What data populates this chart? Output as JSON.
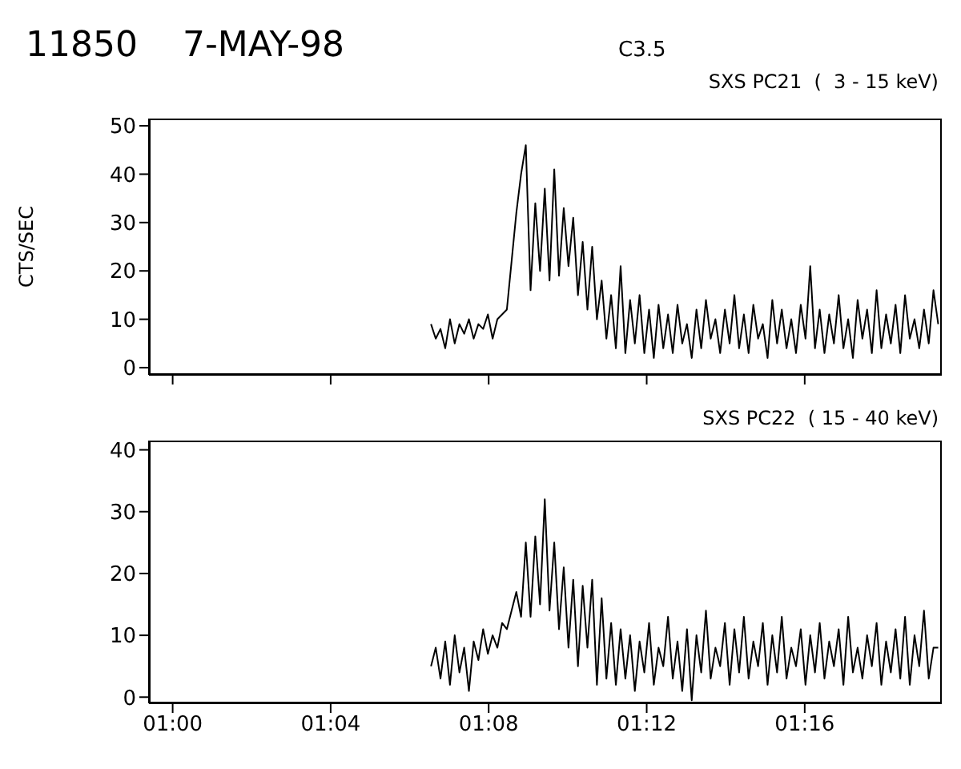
{
  "chart_data": [
    {
      "type": "line",
      "title": "11850",
      "subtitle": "7-MAY-98",
      "annotations": [
        "C3.5",
        "SXS PC21  (  3 - 15 keV)"
      ],
      "ylabel": "CTS/SEC",
      "x": [
        1.109,
        1.111,
        1.113,
        1.115,
        1.117,
        1.119,
        1.121,
        1.123,
        1.125,
        1.127,
        1.129,
        1.131,
        1.133,
        1.135,
        1.137,
        1.139,
        1.141,
        1.143,
        1.145,
        1.147,
        1.149,
        1.151,
        1.153,
        1.155,
        1.157,
        1.159,
        1.161,
        1.163,
        1.165,
        1.167,
        1.169,
        1.171,
        1.173,
        1.175,
        1.177,
        1.179,
        1.181,
        1.183,
        1.185,
        1.187,
        1.189,
        1.191,
        1.193,
        1.195,
        1.197,
        1.199,
        1.201,
        1.203,
        1.205,
        1.207,
        1.209,
        1.211,
        1.213,
        1.215,
        1.217,
        1.219,
        1.221,
        1.223,
        1.225,
        1.227,
        1.229,
        1.231,
        1.233,
        1.235,
        1.237,
        1.239,
        1.241,
        1.243,
        1.245,
        1.247,
        1.249,
        1.251,
        1.253,
        1.255,
        1.257,
        1.259,
        1.261,
        1.263,
        1.265,
        1.267,
        1.269,
        1.271,
        1.273,
        1.275,
        1.277,
        1.279,
        1.281,
        1.283,
        1.285,
        1.287,
        1.289,
        1.291,
        1.293,
        1.295,
        1.297,
        1.299,
        1.301,
        1.303,
        1.305,
        1.307,
        1.309,
        1.311,
        1.313,
        1.315,
        1.317,
        1.319,
        1.321,
        1.323
      ],
      "series": [
        {
          "color": "#000000",
          "values": [
            9,
            6,
            8,
            4,
            10,
            5,
            9,
            7,
            10,
            6,
            9,
            8,
            11,
            6,
            10,
            11,
            12,
            22,
            32,
            40,
            46,
            16,
            34,
            20,
            37,
            18,
            41,
            19,
            33,
            21,
            31,
            15,
            26,
            12,
            25,
            10,
            18,
            6,
            15,
            4,
            21,
            3,
            14,
            5,
            15,
            3,
            12,
            2,
            13,
            4,
            11,
            3,
            13,
            5,
            9,
            2,
            12,
            4,
            14,
            6,
            10,
            3,
            12,
            5,
            15,
            4,
            11,
            3,
            13,
            6,
            9,
            2,
            14,
            5,
            12,
            4,
            10,
            3,
            13,
            6,
            21,
            4,
            12,
            3,
            11,
            5,
            15,
            4,
            10,
            2,
            14,
            6,
            12,
            3,
            16,
            4,
            11,
            5,
            13,
            3,
            15,
            6,
            10,
            4,
            12,
            5,
            16,
            9
          ]
        }
      ],
      "xlim": [
        0.99,
        1.3245
      ],
      "ylim": [
        -1.5,
        51.5
      ],
      "yticks": [
        0,
        10,
        20,
        30,
        40,
        50
      ],
      "tick_labels": "y",
      "xticks": [
        {
          "value": 1,
          "label": null
        },
        {
          "value": 1.066667,
          "label": null
        },
        {
          "value": 1.133333,
          "label": null
        },
        {
          "value": 1.2,
          "label": null
        },
        {
          "value": 1.266667,
          "label": null
        }
      ]
    },
    {
      "type": "line",
      "annotations": [
        "SXS PC22  ( 15 - 40 keV)"
      ],
      "x": [
        1.109,
        1.111,
        1.113,
        1.115,
        1.117,
        1.119,
        1.121,
        1.123,
        1.125,
        1.127,
        1.129,
        1.131,
        1.133,
        1.135,
        1.137,
        1.139,
        1.141,
        1.143,
        1.145,
        1.147,
        1.149,
        1.151,
        1.153,
        1.155,
        1.157,
        1.159,
        1.161,
        1.163,
        1.165,
        1.167,
        1.169,
        1.171,
        1.173,
        1.175,
        1.177,
        1.179,
        1.181,
        1.183,
        1.185,
        1.187,
        1.189,
        1.191,
        1.193,
        1.195,
        1.197,
        1.199,
        1.201,
        1.203,
        1.205,
        1.207,
        1.209,
        1.211,
        1.213,
        1.215,
        1.217,
        1.219,
        1.221,
        1.223,
        1.225,
        1.227,
        1.229,
        1.231,
        1.233,
        1.235,
        1.237,
        1.239,
        1.241,
        1.243,
        1.245,
        1.247,
        1.249,
        1.251,
        1.253,
        1.255,
        1.257,
        1.259,
        1.261,
        1.263,
        1.265,
        1.267,
        1.269,
        1.271,
        1.273,
        1.275,
        1.277,
        1.279,
        1.281,
        1.283,
        1.285,
        1.287,
        1.289,
        1.291,
        1.293,
        1.295,
        1.297,
        1.299,
        1.301,
        1.303,
        1.305,
        1.307,
        1.309,
        1.311,
        1.313,
        1.315,
        1.317,
        1.319,
        1.321,
        1.323
      ],
      "series": [
        {
          "color": "#000000",
          "values": [
            5,
            8,
            3,
            9,
            2,
            10,
            4,
            8,
            1,
            9,
            6,
            11,
            7,
            10,
            8,
            12,
            11,
            14,
            17,
            13,
            25,
            13,
            26,
            15,
            32,
            14,
            25,
            11,
            21,
            8,
            19,
            5,
            18,
            8,
            19,
            2,
            16,
            3,
            12,
            2,
            11,
            3,
            10,
            1,
            9,
            4,
            12,
            2,
            8,
            5,
            13,
            3,
            9,
            1,
            11,
            -0.5,
            10,
            4,
            14,
            3,
            8,
            5,
            12,
            2,
            11,
            4,
            13,
            3,
            9,
            5,
            12,
            2,
            10,
            4,
            13,
            3,
            8,
            5,
            11,
            2,
            10,
            4,
            12,
            3,
            9,
            5,
            11,
            2,
            13,
            4,
            8,
            3,
            10,
            5,
            12,
            2,
            9,
            4,
            11,
            3,
            13,
            2,
            10,
            5,
            14,
            3,
            8,
            8
          ]
        }
      ],
      "xlim": [
        0.99,
        1.3245
      ],
      "ylim": [
        -1,
        41.5
      ],
      "yticks": [
        0,
        10,
        20,
        30,
        40
      ],
      "xticks": [
        {
          "value": 1,
          "label": "01:00"
        },
        {
          "value": 1.066667,
          "label": "01:04"
        },
        {
          "value": 1.133333,
          "label": "01:08"
        },
        {
          "value": 1.2,
          "label": "01:12"
        },
        {
          "value": 1.266667,
          "label": "01:16"
        }
      ]
    }
  ]
}
